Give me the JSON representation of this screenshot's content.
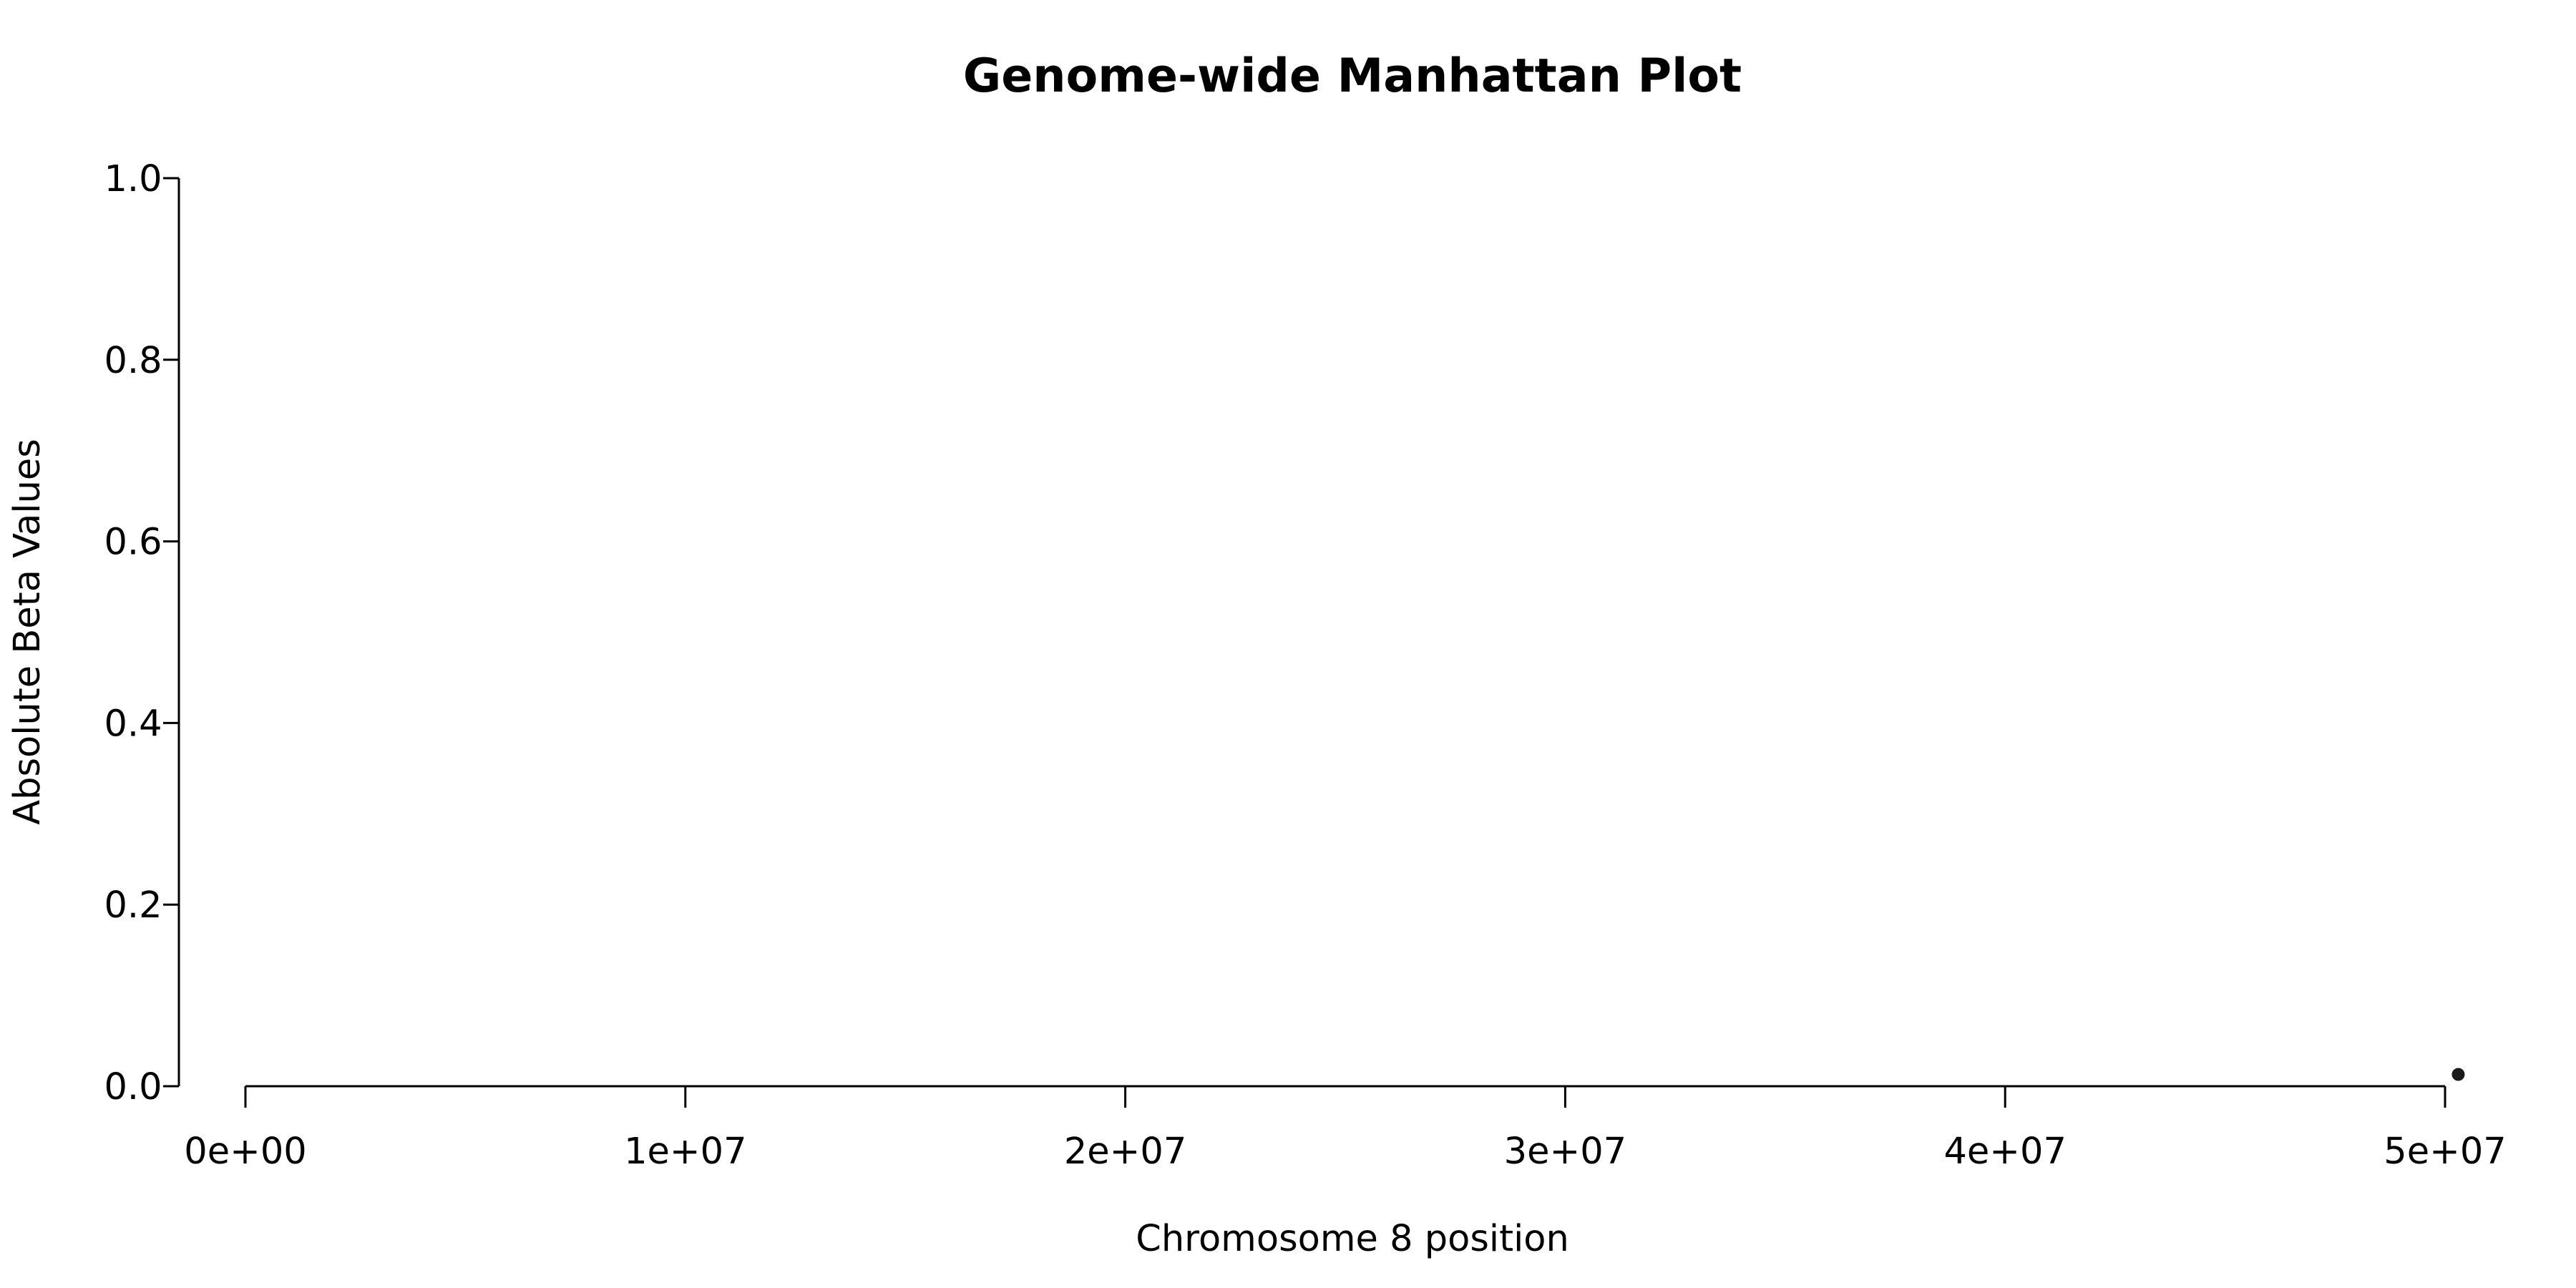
{
  "chart_data": {
    "type": "scatter",
    "title": "Genome-wide Manhattan Plot",
    "xlabel": "Chromosome 8 position",
    "ylabel": "Absolute Beta Values",
    "xlim": [
      0,
      50000000
    ],
    "ylim": [
      0,
      1
    ],
    "x_ticks": [
      {
        "value": 0,
        "label": "0e+00"
      },
      {
        "value": 10000000,
        "label": "1e+07"
      },
      {
        "value": 20000000,
        "label": "2e+07"
      },
      {
        "value": 30000000,
        "label": "3e+07"
      },
      {
        "value": 40000000,
        "label": "4e+07"
      },
      {
        "value": 50000000,
        "label": "5e+07"
      }
    ],
    "y_ticks": [
      {
        "value": 0,
        "label": "0.0"
      },
      {
        "value": 0.2,
        "label": "0.2"
      },
      {
        "value": 0.4,
        "label": "0.4"
      },
      {
        "value": 0.6,
        "label": "0.6"
      },
      {
        "value": 0.8,
        "label": "0.8"
      },
      {
        "value": 1.0,
        "label": "1.0"
      }
    ],
    "points": [
      {
        "x": 50300000,
        "y": 0.013
      }
    ],
    "point_color": "#1a1a1a",
    "grid": false,
    "legend": "none"
  }
}
